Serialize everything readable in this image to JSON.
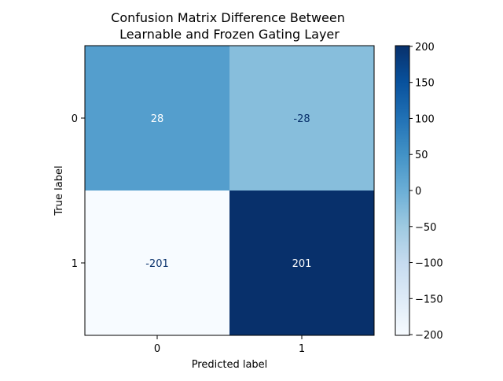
{
  "chart_data": {
    "type": "heatmap",
    "title_lines": [
      "Confusion Matrix Difference Between",
      "Learnable and Frozen Gating Layer"
    ],
    "xlabel": "Predicted label",
    "ylabel": "True label",
    "x_categories": [
      "0",
      "1"
    ],
    "y_categories": [
      "0",
      "1"
    ],
    "matrix": [
      [
        28,
        -28
      ],
      [
        -201,
        201
      ]
    ],
    "colormap": "Blues",
    "vmin": -201,
    "vmax": 201,
    "colorbar": {
      "ticks": [
        200,
        150,
        100,
        50,
        0,
        -50,
        -100,
        -150,
        -200
      ],
      "tick_labels": [
        "200",
        "150",
        "100",
        "50",
        "0",
        "−50",
        "−100",
        "−150",
        "−200"
      ]
    }
  }
}
